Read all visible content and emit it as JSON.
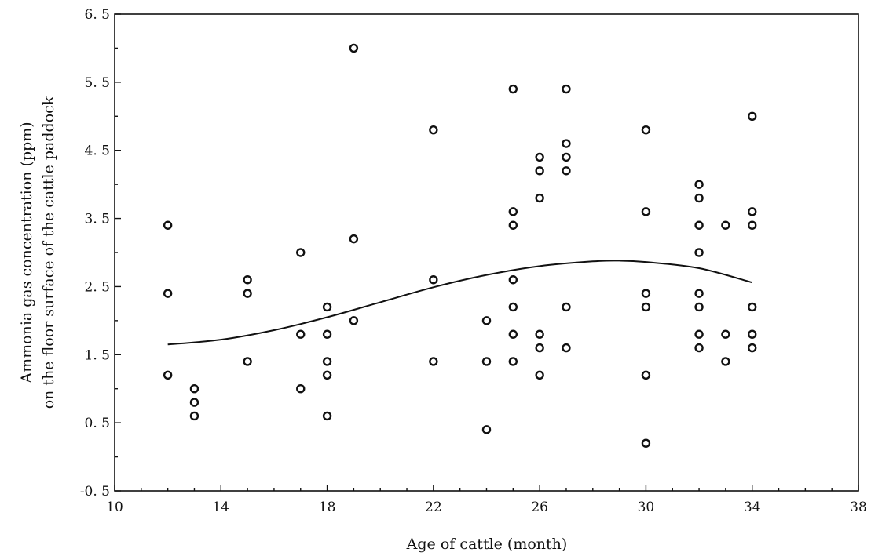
{
  "chart_data": {
    "type": "scatter",
    "xlabel": "Age of cattle (month)",
    "ylabel_line1": "Ammonia gas concentration (ppm)",
    "ylabel_line2": "on the floor surface of the cattle paddock",
    "xlim": [
      10,
      38
    ],
    "ylim": [
      -0.5,
      6.5
    ],
    "xticks": [
      10,
      14,
      18,
      22,
      26,
      30,
      34,
      38
    ],
    "xtick_labels": [
      "10",
      "14",
      "18",
      "22",
      "26",
      "30",
      "34",
      "38"
    ],
    "yticks": [
      -0.5,
      0.5,
      1.5,
      2.5,
      3.5,
      4.5,
      5.5,
      6.5
    ],
    "ytick_labels": [
      "-0. 5",
      "0. 5",
      "1. 5",
      "2. 5",
      "3. 5",
      "4. 5",
      "5. 5",
      "6. 5"
    ],
    "grid": false,
    "points": [
      [
        12,
        3.4
      ],
      [
        12,
        2.4
      ],
      [
        12,
        1.2
      ],
      [
        13,
        1.0
      ],
      [
        13,
        0.8
      ],
      [
        13,
        0.6
      ],
      [
        15,
        2.6
      ],
      [
        15,
        2.4
      ],
      [
        15,
        1.4
      ],
      [
        17,
        3.0
      ],
      [
        17,
        1.8
      ],
      [
        17,
        1.0
      ],
      [
        18,
        2.2
      ],
      [
        18,
        1.8
      ],
      [
        18,
        1.4
      ],
      [
        18,
        1.2
      ],
      [
        18,
        0.6
      ],
      [
        19,
        6.0
      ],
      [
        19,
        3.2
      ],
      [
        19,
        2.0
      ],
      [
        22,
        4.8
      ],
      [
        22,
        2.6
      ],
      [
        22,
        1.4
      ],
      [
        24,
        2.0
      ],
      [
        24,
        1.4
      ],
      [
        24,
        0.4
      ],
      [
        25,
        5.4
      ],
      [
        25,
        3.6
      ],
      [
        25,
        3.4
      ],
      [
        25,
        2.6
      ],
      [
        25,
        2.2
      ],
      [
        25,
        1.8
      ],
      [
        25,
        1.4
      ],
      [
        26,
        4.4
      ],
      [
        26,
        4.2
      ],
      [
        26,
        3.8
      ],
      [
        26,
        1.8
      ],
      [
        26,
        1.6
      ],
      [
        26,
        1.2
      ],
      [
        27,
        5.4
      ],
      [
        27,
        4.6
      ],
      [
        27,
        4.4
      ],
      [
        27,
        4.2
      ],
      [
        27,
        2.2
      ],
      [
        27,
        1.6
      ],
      [
        30,
        4.8
      ],
      [
        30,
        3.6
      ],
      [
        30,
        2.4
      ],
      [
        30,
        2.2
      ],
      [
        30,
        1.2
      ],
      [
        30,
        0.2
      ],
      [
        32,
        4.0
      ],
      [
        32,
        3.8
      ],
      [
        32,
        3.4
      ],
      [
        32,
        3.0
      ],
      [
        32,
        2.4
      ],
      [
        32,
        2.2
      ],
      [
        32,
        1.8
      ],
      [
        32,
        1.6
      ],
      [
        33,
        3.4
      ],
      [
        33,
        1.8
      ],
      [
        33,
        1.4
      ],
      [
        34,
        5.0
      ],
      [
        34,
        3.6
      ],
      [
        34,
        3.4
      ],
      [
        34,
        2.2
      ],
      [
        34,
        1.8
      ],
      [
        34,
        1.6
      ]
    ],
    "fit_curve": [
      [
        12,
        1.65
      ],
      [
        14,
        1.72
      ],
      [
        16,
        1.86
      ],
      [
        18,
        2.05
      ],
      [
        20,
        2.27
      ],
      [
        22,
        2.49
      ],
      [
        24,
        2.67
      ],
      [
        26,
        2.8
      ],
      [
        28,
        2.87
      ],
      [
        29,
        2.88
      ],
      [
        30,
        2.86
      ],
      [
        32,
        2.77
      ],
      [
        34,
        2.56
      ]
    ]
  }
}
